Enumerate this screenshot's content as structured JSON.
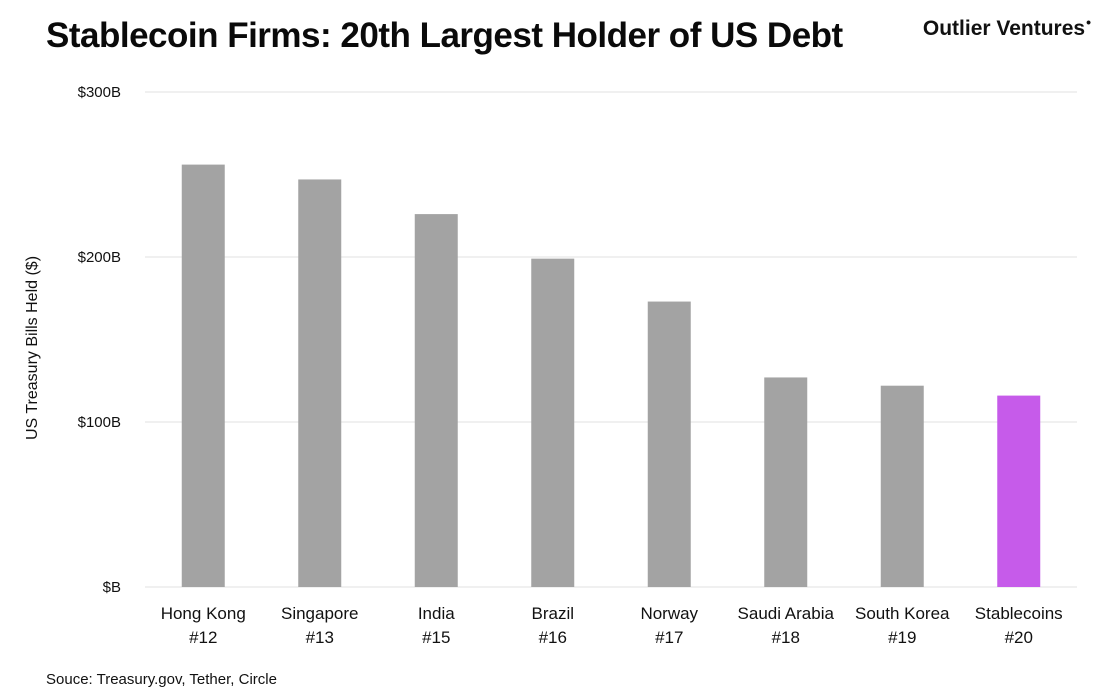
{
  "header": {
    "title": "Stablecoin Firms: 20th Largest Holder of US Debt",
    "brand": "Outlier Ventures",
    "brand_mark": "•"
  },
  "footer": {
    "source": "Souce: Treasury.gov, Tether, Circle"
  },
  "colors": {
    "default_bar": "#a3a3a3",
    "highlight_bar": "#c65bea",
    "grid": "#e2e2e2"
  },
  "chart_data": {
    "type": "bar",
    "title": "Stablecoin Firms: 20th Largest Holder of US Debt",
    "ylabel": "US Treasury Bills Held ($)",
    "xlabel": "",
    "ylim": [
      0,
      300
    ],
    "yunit": "B",
    "yticks": [
      {
        "value": 0,
        "label": "$B"
      },
      {
        "value": 100,
        "label": "$100B"
      },
      {
        "value": 200,
        "label": "$200B"
      },
      {
        "value": 300,
        "label": "$300B"
      }
    ],
    "grid": true,
    "categories": [
      {
        "name": "Hong Kong",
        "rank": "#12"
      },
      {
        "name": "Singapore",
        "rank": "#13"
      },
      {
        "name": "India",
        "rank": "#15"
      },
      {
        "name": "Brazil",
        "rank": "#16"
      },
      {
        "name": "Norway",
        "rank": "#17"
      },
      {
        "name": "Saudi Arabia",
        "rank": "#18"
      },
      {
        "name": "South Korea",
        "rank": "#19"
      },
      {
        "name": "Stablecoins",
        "rank": "#20"
      }
    ],
    "values": [
      256,
      247,
      226,
      199,
      173,
      127,
      122,
      116
    ],
    "highlight_index": 7
  }
}
